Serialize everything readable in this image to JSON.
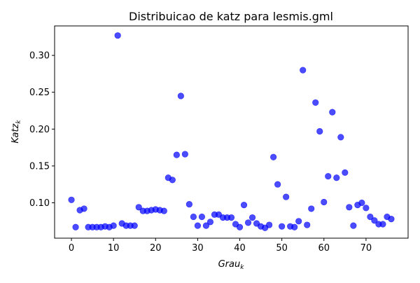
{
  "chart_data": {
    "type": "scatter",
    "title": "Distribuicao de katz para lesmis.gml",
    "xlabel": {
      "base": "Grau",
      "sub": "k"
    },
    "ylabel": {
      "base": "Katz",
      "sub": "k"
    },
    "xlim": [
      -4,
      80
    ],
    "ylim": [
      0.052,
      0.34
    ],
    "xticks": [
      0,
      10,
      20,
      30,
      40,
      50,
      60,
      70
    ],
    "yticks": [
      0.1,
      0.15,
      0.2,
      0.25,
      0.3
    ],
    "xtick_labels": [
      "0",
      "10",
      "20",
      "30",
      "40",
      "50",
      "60",
      "70"
    ],
    "ytick_labels": [
      "0.10",
      "0.15",
      "0.20",
      "0.25",
      "0.30"
    ],
    "grid": false,
    "legend": "none",
    "marker_color": "#0000ff",
    "marker_alpha": 0.7,
    "points": [
      [
        0,
        0.104
      ],
      [
        1,
        0.067
      ],
      [
        2,
        0.09
      ],
      [
        3,
        0.092
      ],
      [
        4,
        0.067
      ],
      [
        5,
        0.067
      ],
      [
        6,
        0.067
      ],
      [
        7,
        0.067
      ],
      [
        8,
        0.068
      ],
      [
        9,
        0.067
      ],
      [
        10,
        0.069
      ],
      [
        11,
        0.327
      ],
      [
        12,
        0.072
      ],
      [
        13,
        0.069
      ],
      [
        14,
        0.069
      ],
      [
        15,
        0.069
      ],
      [
        16,
        0.094
      ],
      [
        17,
        0.089
      ],
      [
        18,
        0.089
      ],
      [
        19,
        0.09
      ],
      [
        20,
        0.091
      ],
      [
        21,
        0.09
      ],
      [
        22,
        0.089
      ],
      [
        23,
        0.134
      ],
      [
        24,
        0.131
      ],
      [
        25,
        0.165
      ],
      [
        26,
        0.245
      ],
      [
        27,
        0.166
      ],
      [
        28,
        0.098
      ],
      [
        29,
        0.081
      ],
      [
        30,
        0.069
      ],
      [
        31,
        0.081
      ],
      [
        32,
        0.069
      ],
      [
        33,
        0.074
      ],
      [
        34,
        0.084
      ],
      [
        35,
        0.084
      ],
      [
        36,
        0.08
      ],
      [
        37,
        0.08
      ],
      [
        38,
        0.08
      ],
      [
        39,
        0.071
      ],
      [
        40,
        0.067
      ],
      [
        41,
        0.097
      ],
      [
        42,
        0.073
      ],
      [
        43,
        0.08
      ],
      [
        44,
        0.072
      ],
      [
        45,
        0.068
      ],
      [
        46,
        0.066
      ],
      [
        47,
        0.07
      ],
      [
        48,
        0.162
      ],
      [
        49,
        0.125
      ],
      [
        50,
        0.068
      ],
      [
        51,
        0.108
      ],
      [
        52,
        0.068
      ],
      [
        53,
        0.067
      ],
      [
        54,
        0.075
      ],
      [
        55,
        0.28
      ],
      [
        56,
        0.07
      ],
      [
        57,
        0.092
      ],
      [
        58,
        0.236
      ],
      [
        59,
        0.197
      ],
      [
        60,
        0.101
      ],
      [
        61,
        0.136
      ],
      [
        62,
        0.223
      ],
      [
        63,
        0.134
      ],
      [
        64,
        0.189
      ],
      [
        65,
        0.141
      ],
      [
        66,
        0.094
      ],
      [
        67,
        0.069
      ],
      [
        68,
        0.097
      ],
      [
        69,
        0.1
      ],
      [
        70,
        0.093
      ],
      [
        71,
        0.081
      ],
      [
        72,
        0.076
      ],
      [
        73,
        0.071
      ],
      [
        74,
        0.071
      ],
      [
        75,
        0.081
      ],
      [
        76,
        0.078
      ]
    ]
  }
}
